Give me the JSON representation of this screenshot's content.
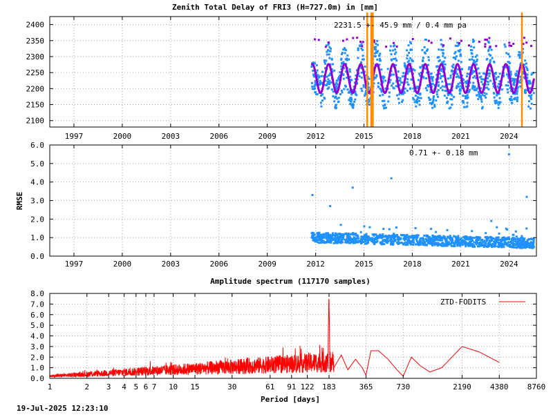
{
  "colors": {
    "scatter": "#1e90ff",
    "model": "#9400d3",
    "event": "#ff8c00",
    "spectrum": "#ff0000"
  },
  "footer": {
    "timestamp": "19-Jul-2025 12:23:10"
  },
  "chart_data": [
    {
      "type": "scatter",
      "title": "Zenith Total Delay of FRI3 (H=727.0m) in [mm]",
      "annotation": "2231.5 +-  45.9 mm /  0.4 mm pa",
      "xlim": [
        1995.5,
        2025.7
      ],
      "ylim": [
        2080,
        2425
      ],
      "ytick_values": [
        2100,
        2150,
        2200,
        2250,
        2300,
        2350,
        2400
      ],
      "ytick_labels": [
        "2100",
        "2150",
        "2200",
        "2250",
        "2300",
        "2350",
        "2400"
      ],
      "xtick_values": [
        1997,
        2000,
        2003,
        2006,
        2009,
        2012,
        2015,
        2018,
        2021,
        2024
      ],
      "xtick_labels": [
        "1997",
        "2000",
        "2003",
        "2006",
        "2009",
        "2012",
        "2015",
        "2018",
        "2021",
        "2024"
      ],
      "data_start": 2011.75,
      "data_end": 2025.55,
      "mean": 2231.5,
      "amplitude": 45,
      "scatter_spread": 50,
      "event_lines": [
        2015.2,
        2015.45,
        2015.55,
        2024.8
      ]
    },
    {
      "type": "scatter",
      "ylabel": "RMSE",
      "annotation": "0.71 +-  0.18 mm",
      "xlim": [
        1995.5,
        2025.7
      ],
      "ylim": [
        0,
        6
      ],
      "ytick_values": [
        0,
        1,
        2,
        3,
        4,
        5,
        6
      ],
      "ytick_labels": [
        "0.0",
        "1.0",
        "2.0",
        "3.0",
        "4.0",
        "5.0",
        "6.0"
      ],
      "xtick_values": [
        1997,
        2000,
        2003,
        2006,
        2009,
        2012,
        2015,
        2018,
        2021,
        2024
      ],
      "xtick_labels": [
        "1997",
        "2000",
        "2003",
        "2006",
        "2009",
        "2012",
        "2015",
        "2018",
        "2021",
        "2024"
      ],
      "data_start": 2011.75,
      "data_end": 2025.55,
      "outliers": [
        [
          2011.8,
          3.3
        ],
        [
          2012.9,
          2.7
        ],
        [
          2014.3,
          3.7
        ],
        [
          2016.7,
          4.2
        ],
        [
          2022.9,
          1.9
        ],
        [
          2024.0,
          5.5
        ],
        [
          2025.1,
          3.2
        ]
      ]
    },
    {
      "type": "line",
      "title": "Amplitude spectrum (117170 samples)",
      "xlabel": "Period [days]",
      "legend": "ZTD-FODITS",
      "xscale": "log",
      "xlim": [
        1,
        8760
      ],
      "ylim": [
        0,
        8
      ],
      "ytick_values": [
        0,
        1,
        2,
        3,
        4,
        5,
        6,
        7,
        8
      ],
      "ytick_labels": [
        "0.0",
        "1.0",
        "2.0",
        "3.0",
        "4.0",
        "5.0",
        "6.0",
        "7.0",
        "8.0"
      ],
      "xtick_values": [
        1,
        2,
        3,
        4,
        5,
        6,
        7,
        10,
        15,
        30,
        61,
        91,
        122,
        183,
        365,
        730,
        2190,
        4380,
        8760
      ],
      "xtick_labels": [
        "1",
        "2",
        "3",
        "4",
        "5",
        "6",
        "7",
        "10",
        "15",
        "30",
        "61",
        "91",
        "122",
        "183",
        "365",
        "730",
        "2190",
        "4380",
        "8760"
      ],
      "peak": [
        182.6,
        7.8
      ],
      "long_period_points": [
        [
          200,
          1.0
        ],
        [
          230,
          2.2
        ],
        [
          260,
          0.8
        ],
        [
          300,
          1.8
        ],
        [
          340,
          1.0
        ],
        [
          365,
          0.3
        ],
        [
          400,
          2.6
        ],
        [
          460,
          2.6
        ],
        [
          550,
          1.8
        ],
        [
          650,
          0.8
        ],
        [
          730,
          0.2
        ],
        [
          850,
          2.0
        ],
        [
          1000,
          1.2
        ],
        [
          1200,
          0.6
        ],
        [
          1500,
          1.0
        ],
        [
          2190,
          3.0
        ],
        [
          3000,
          2.5
        ],
        [
          4380,
          1.5
        ]
      ]
    }
  ]
}
